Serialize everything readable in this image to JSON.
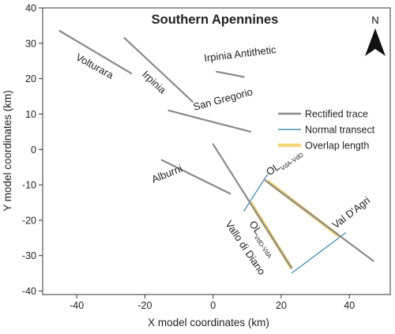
{
  "chart_data": {
    "type": "scatter",
    "title": "Southern Apennines",
    "xlabel": "X model coordinates (km)",
    "ylabel": "Y model coordinates (km)",
    "xlim": [
      -50,
      52
    ],
    "ylim": [
      -41,
      40
    ],
    "xticks": [
      -40,
      -20,
      0,
      20,
      40
    ],
    "yticks": [
      -40,
      -30,
      -20,
      -10,
      0,
      10,
      20,
      30,
      40
    ],
    "grid": false,
    "legend_position": "center-right",
    "north_arrow_label": "N",
    "colors": {
      "rectified_trace": "#8a8a8a",
      "normal_transect": "#2b7b9e",
      "overlap_length": "#f7d77c"
    },
    "legend": [
      {
        "label": "Rectified trace",
        "kind": "rectified_trace"
      },
      {
        "label": "Normal transect",
        "kind": "normal_transect"
      },
      {
        "label": "Overlap length",
        "kind": "overlap_length"
      }
    ],
    "series": [
      {
        "name": "Volturara",
        "kind": "rectified_trace",
        "points": [
          [
            -45,
            33.5
          ],
          [
            -24,
            21.5
          ]
        ]
      },
      {
        "name": "Irpinia",
        "kind": "rectified_trace",
        "points": [
          [
            -26,
            31.5
          ],
          [
            -6,
            13.5
          ]
        ]
      },
      {
        "name": "Irpinia Antithetic",
        "kind": "rectified_trace",
        "points": [
          [
            1,
            22
          ],
          [
            9,
            20.5
          ]
        ]
      },
      {
        "name": "San Gregorio",
        "kind": "rectified_trace",
        "points": [
          [
            -13,
            11
          ],
          [
            11,
            5
          ]
        ]
      },
      {
        "name": "Alburni",
        "kind": "rectified_trace",
        "points": [
          [
            -15,
            -3
          ],
          [
            5,
            -12.5
          ]
        ]
      },
      {
        "name": "Vallo di Diano",
        "kind": "rectified_trace",
        "points": [
          [
            0,
            1.5
          ],
          [
            23,
            -33.5
          ]
        ]
      },
      {
        "name": "Val D'Agri",
        "kind": "rectified_trace",
        "points": [
          [
            15,
            -8.5
          ],
          [
            47,
            -31.5
          ]
        ]
      },
      {
        "kind": "normal_transect",
        "points": [
          [
            9,
            -17.5
          ],
          [
            16,
            -7
          ]
        ]
      },
      {
        "kind": "normal_transect",
        "points": [
          [
            23,
            -35
          ],
          [
            39,
            -23.5
          ]
        ]
      },
      {
        "kind": "overlap_length",
        "points": [
          [
            11,
            -15
          ],
          [
            23,
            -33.5
          ]
        ]
      },
      {
        "kind": "overlap_length",
        "points": [
          [
            16,
            -9
          ],
          [
            37,
            -24.5
          ]
        ]
      }
    ],
    "labels": [
      {
        "text": "Volturara",
        "x": -40.5,
        "y": 25.5,
        "angle": 29
      },
      {
        "text": "Irpinia",
        "x": -21,
        "y": 21,
        "angle": 43
      },
      {
        "text": "Irpinia Antithetic",
        "x": -2.5,
        "y": 24.8,
        "angle": -7
      },
      {
        "text": "San Gregorio",
        "x": -5.5,
        "y": 11,
        "angle": -15
      },
      {
        "text": "Alburni",
        "x": -17.5,
        "y": -9.5,
        "angle": -22
      },
      {
        "text": "Vallo di Diano",
        "x": 3.5,
        "y": -21,
        "angle": 56
      },
      {
        "text": "Val D'Agri",
        "x": 36,
        "y": -22.5,
        "angle": -38
      }
    ],
    "overlap_labels": [
      {
        "main": "OL",
        "sub": "VdA-VdD",
        "x": 16.5,
        "y": -7.5,
        "angle": -35
      },
      {
        "main": "OL",
        "sub": "VdD-VdA",
        "x": 10.5,
        "y": -21,
        "angle": 56
      }
    ]
  }
}
